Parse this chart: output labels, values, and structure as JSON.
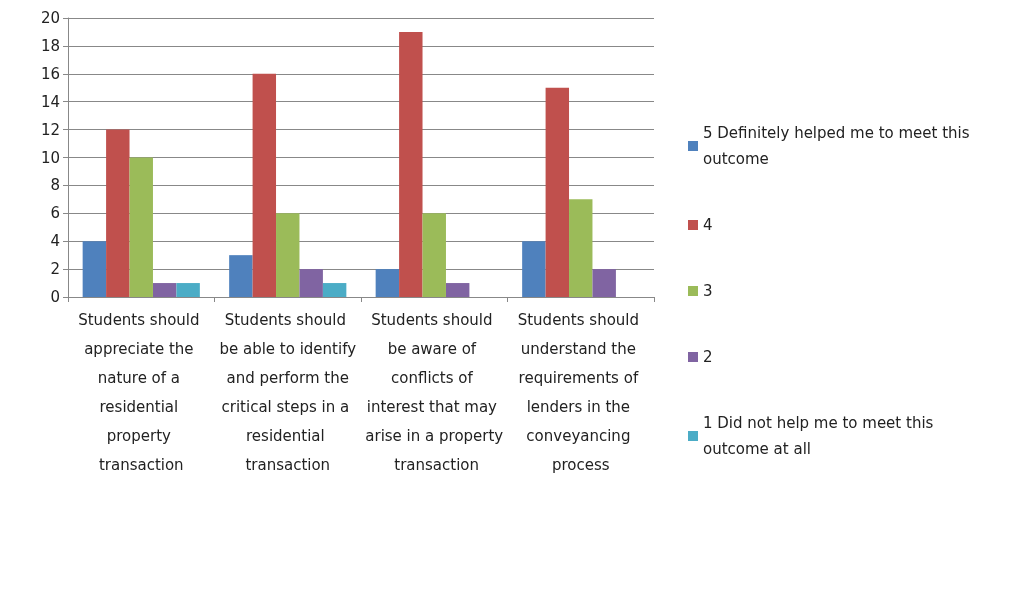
{
  "chart_data": {
    "type": "bar",
    "categories": [
      "Students should appreciate the nature of a residential property transaction",
      "Students should be able to identify and perform the critical steps in a residential transaction",
      "Students should be aware of conflicts of interest that may arise in a property transaction",
      "Students should understand the requirements of lenders in the conveyancing process"
    ],
    "series": [
      {
        "name": "5 Definitely helped me to meet this outcome",
        "color": "#4f81bd",
        "values": [
          4,
          3,
          2,
          4
        ]
      },
      {
        "name": "4",
        "color": "#c0504d",
        "values": [
          12,
          16,
          19,
          15
        ]
      },
      {
        "name": "3",
        "color": "#9bbb59",
        "values": [
          10,
          6,
          6,
          7
        ]
      },
      {
        "name": "2",
        "color": "#8064a2",
        "values": [
          1,
          2,
          1,
          2
        ]
      },
      {
        "name": "1 Did not help me to meet this outcome at all",
        "color": "#4bacc6",
        "values": [
          1,
          1,
          0,
          0
        ]
      }
    ],
    "ylim": [
      0,
      20
    ],
    "yticks": [
      0,
      2,
      4,
      6,
      8,
      10,
      12,
      14,
      16,
      18,
      20
    ],
    "grid": "y",
    "legend": "right"
  }
}
